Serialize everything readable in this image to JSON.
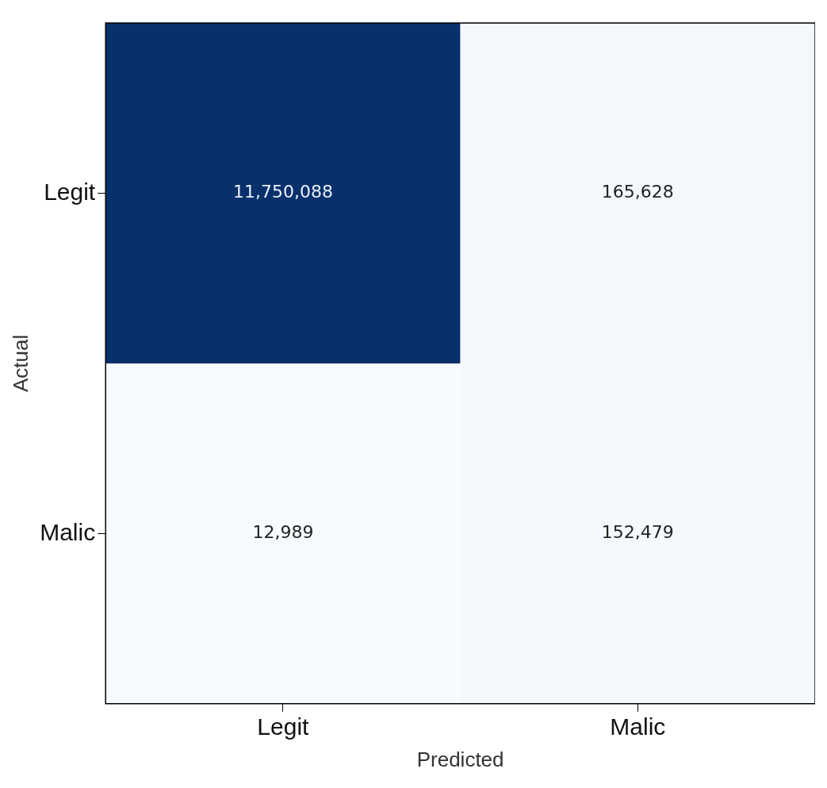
{
  "chart_data": {
    "type": "heatmap",
    "xlabel": "Predicted",
    "ylabel": "Actual",
    "categories": [
      "Legit",
      "Malic"
    ],
    "y_categories": [
      "Legit",
      "Malic"
    ],
    "cells": [
      [
        11750088,
        165628
      ],
      [
        12989,
        152479
      ]
    ],
    "cell_labels": [
      [
        "11,750,088",
        "165,628"
      ],
      [
        "12,989",
        "152,479"
      ]
    ],
    "grid": false
  }
}
